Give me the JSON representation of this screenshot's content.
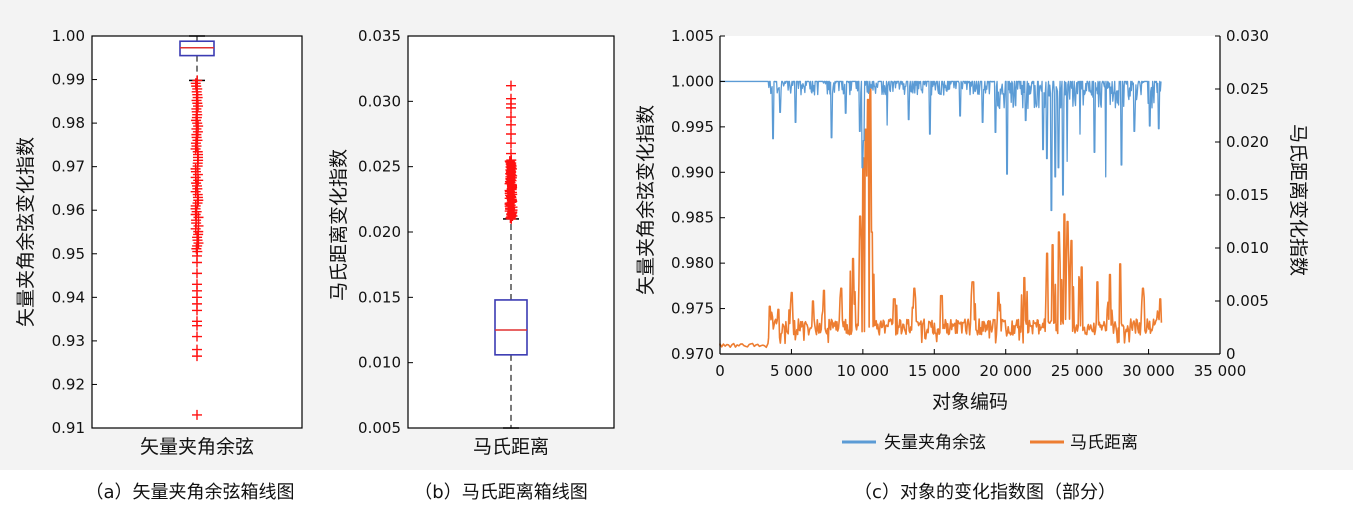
{
  "chart_data": [
    {
      "type": "box",
      "ylabel": "矢量夹角余弦变化指数",
      "categories": [
        "矢量夹角余弦"
      ],
      "ylim": [
        0.91,
        1.0
      ],
      "yticks": [
        "0.91",
        "0.92",
        "0.93",
        "0.94",
        "0.95",
        "0.96",
        "0.97",
        "0.98",
        "0.99",
        "1.00"
      ],
      "box": {
        "whisker_low": 0.9898,
        "q1": 0.9955,
        "median": 0.9973,
        "q3": 0.9988,
        "whisker_high": 1.0
      },
      "outliers_dense_range": [
        0.9505,
        0.9898
      ],
      "outliers_scattered": [
        0.9495,
        0.948,
        0.9455,
        0.943,
        0.9415,
        0.94,
        0.9385,
        0.937,
        0.9345,
        0.9335,
        0.931,
        0.928,
        0.9265,
        0.913
      ],
      "caption": "（a）矢量夹角余弦箱线图"
    },
    {
      "type": "box",
      "ylabel": "马氏距离变化指数",
      "categories": [
        "马氏距离"
      ],
      "ylim": [
        0.005,
        0.035
      ],
      "yticks": [
        "0.005",
        "0.010",
        "0.015",
        "0.020",
        "0.025",
        "0.030",
        "0.035"
      ],
      "box": {
        "whisker_low": 0.005,
        "q1": 0.0106,
        "median": 0.0125,
        "q3": 0.0148,
        "whisker_high": 0.021
      },
      "outliers_dense_range": [
        0.021,
        0.0255
      ],
      "outliers_scattered": [
        0.026,
        0.0268,
        0.0275,
        0.0282,
        0.0288,
        0.0295,
        0.0298,
        0.0302,
        0.0312
      ],
      "caption": "（b）马氏距离箱线图"
    },
    {
      "type": "line",
      "xlabel": "对象编码",
      "ylabel_left": "矢量夹角余弦变化指数",
      "ylabel_right": "马氏距离变化指数",
      "xlim": [
        0,
        35000
      ],
      "ylim_left": [
        0.97,
        1.005
      ],
      "ylim_right": [
        0,
        0.03
      ],
      "xticks": [
        "0",
        "5 000",
        "10 000",
        "15 000",
        "20 000",
        "25 000",
        "30 000",
        "35 000"
      ],
      "yticks_left": [
        "0.970",
        "0.975",
        "0.980",
        "0.985",
        "0.990",
        "0.995",
        "1.000",
        "1.005"
      ],
      "yticks_right": [
        "0",
        "0.005",
        "0.010",
        "0.015",
        "0.020",
        "0.025",
        "0.030"
      ],
      "series": [
        {
          "name": "矢量夹角余弦",
          "color": "#5b9bd5",
          "axis": "left",
          "x_range": [
            0,
            30900
          ],
          "baseline": 1.0,
          "dips": [
            [
              3700,
              0.9937
            ],
            [
              4200,
              0.9966
            ],
            [
              5300,
              0.9955
            ],
            [
              7800,
              0.9938
            ],
            [
              8800,
              0.9965
            ],
            [
              9800,
              0.9945
            ],
            [
              9950,
              0.9905
            ],
            [
              10050,
              0.9935
            ],
            [
              11700,
              0.9952
            ],
            [
              13200,
              0.9958
            ],
            [
              14700,
              0.9942
            ],
            [
              16800,
              0.9962
            ],
            [
              18400,
              0.9955
            ],
            [
              19300,
              0.9944
            ],
            [
              20100,
              0.9898
            ],
            [
              21400,
              0.9957
            ],
            [
              22600,
              0.9925
            ],
            [
              22900,
              0.9915
            ],
            [
              23200,
              0.9858
            ],
            [
              23450,
              0.9895
            ],
            [
              23700,
              0.9905
            ],
            [
              24000,
              0.9875
            ],
            [
              24300,
              0.9912
            ],
            [
              25200,
              0.9942
            ],
            [
              26200,
              0.9922
            ],
            [
              27000,
              0.9895
            ],
            [
              28100,
              0.9908
            ],
            [
              29000,
              0.9945
            ],
            [
              30100,
              0.9951
            ],
            [
              30700,
              0.9948
            ]
          ]
        },
        {
          "name": "马氏距离",
          "color": "#ed7d31",
          "axis": "right",
          "x_range": [
            0,
            30900
          ],
          "baseline_before": 0.0006,
          "baseline_band": [
            0.0018,
            0.0033
          ],
          "start_band": 3400,
          "peaks": [
            [
              3500,
              0.0045
            ],
            [
              4100,
              0.0042
            ],
            [
              5000,
              0.0058
            ],
            [
              6500,
              0.005
            ],
            [
              7300,
              0.006
            ],
            [
              8500,
              0.0062
            ],
            [
              9300,
              0.009
            ],
            [
              9800,
              0.013
            ],
            [
              10050,
              0.0185
            ],
            [
              10200,
              0.0212
            ],
            [
              10350,
              0.024
            ],
            [
              10500,
              0.025
            ],
            [
              10650,
              0.0115
            ],
            [
              12200,
              0.0052
            ],
            [
              13600,
              0.0062
            ],
            [
              15500,
              0.0055
            ],
            [
              17700,
              0.0068
            ],
            [
              19500,
              0.0058
            ],
            [
              21300,
              0.0072
            ],
            [
              22900,
              0.0095
            ],
            [
              23300,
              0.0103
            ],
            [
              23700,
              0.0115
            ],
            [
              24100,
              0.0132
            ],
            [
              24350,
              0.0125
            ],
            [
              24600,
              0.0107
            ],
            [
              25300,
              0.0082
            ],
            [
              26400,
              0.0068
            ],
            [
              27300,
              0.0075
            ],
            [
              28000,
              0.0085
            ],
            [
              29600,
              0.0062
            ],
            [
              30800,
              0.0052
            ]
          ]
        }
      ],
      "legend": {
        "placement": "bottom"
      },
      "caption": "（c）对象的变化指数图（部分）"
    }
  ]
}
